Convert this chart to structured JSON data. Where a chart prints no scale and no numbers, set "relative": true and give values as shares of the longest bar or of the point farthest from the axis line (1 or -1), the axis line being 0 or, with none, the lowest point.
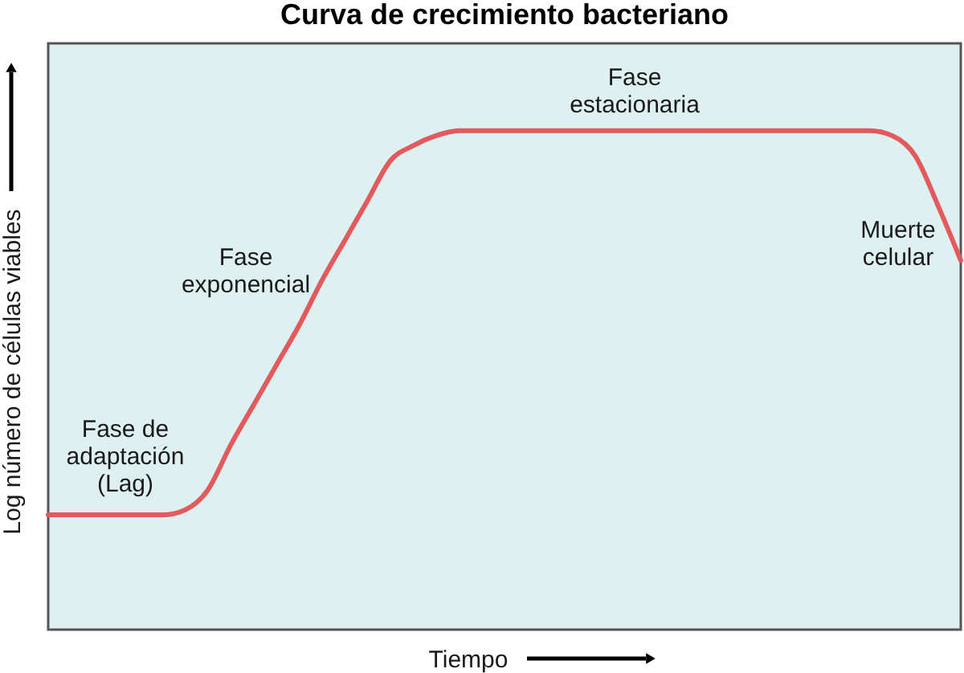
{
  "chart_data": {
    "type": "line",
    "title": "Curva de crecimiento bacteriano",
    "xlabel": "Tiempo",
    "ylabel": "Log número de células viables",
    "relative": true,
    "line_style": "solid",
    "categories": [
      null,
      null,
      null,
      null,
      null,
      null,
      null,
      null,
      null,
      null,
      null,
      null,
      null,
      null,
      null,
      null,
      null,
      null,
      null,
      null,
      null,
      null,
      null,
      null,
      null,
      null,
      null,
      null,
      null,
      null,
      null,
      null,
      null,
      null,
      null,
      null,
      null,
      null,
      null,
      null,
      null
    ],
    "series": [
      {
        "color": "#e2595e",
        "values": [
          0.23,
          0.23,
          0.23,
          0.23,
          0.23,
          0.23,
          0.24,
          0.28,
          0.37,
          0.45,
          0.53,
          0.61,
          0.7,
          0.78,
          0.86,
          0.94,
          0.97,
          0.99,
          1,
          1,
          1,
          1,
          1,
          1,
          1,
          1,
          1,
          1,
          1,
          1,
          1,
          1,
          1,
          1,
          1,
          1,
          1,
          0.99,
          0.95,
          0.85,
          0.74
        ]
      }
    ],
    "annotations": [
      "Fase de\nadaptación\n(Lag)",
      "Fase\nexponencial",
      "Fase\nestacionaria",
      "Muerte\ncelular"
    ]
  }
}
